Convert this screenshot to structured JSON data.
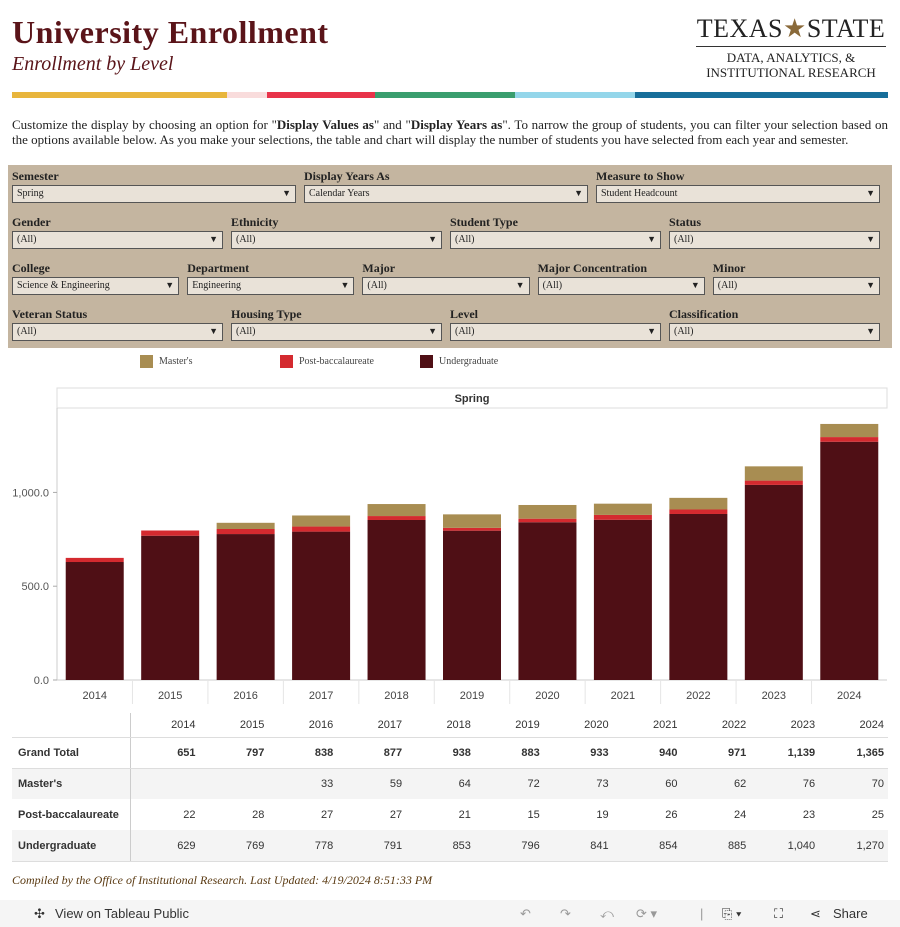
{
  "header": {
    "title": "University  Enrollment",
    "subtitle": "Enrollment  by  Level"
  },
  "logo": {
    "line1a": "TEXAS",
    "line1b": "STATE",
    "line2": "DATA, ANALYTICS, &",
    "line3": "INSTITUTIONAL RESEARCH"
  },
  "stripe_colors": [
    "#e8b53c",
    "#f9dcdc",
    "#e8334a",
    "#3a9e6e",
    "#94d6ea",
    "#176e9a"
  ],
  "intro": {
    "t1": "Customize the display by choosing an option for \"",
    "b1": "Display Values as",
    "t2": "\" and \"",
    "b2": "Display Years as",
    "t3": "\". To narrow the group of students, you can filter your selection based on the options available below. As you make your selections, the table and chart will display the number of students you have selected from each year and semester."
  },
  "filters": [
    {
      "label": "Semester",
      "value": "Spring"
    },
    {
      "label": "Display  Years  As",
      "value": "Calendar Years"
    },
    {
      "label": "Measure to Show",
      "value": "Student Headcount"
    },
    {
      "label": "Gender",
      "value": "(All)"
    },
    {
      "label": "Ethnicity",
      "value": "(All)"
    },
    {
      "label": "Student Type",
      "value": "(All)"
    },
    {
      "label": "Status",
      "value": "(All)"
    },
    {
      "label": "College",
      "value": "Science & Engineering"
    },
    {
      "label": "Department",
      "value": "Engineering"
    },
    {
      "label": "Major",
      "value": "(All)"
    },
    {
      "label": "Major Concentration",
      "value": "(All)"
    },
    {
      "label": "Minor",
      "value": "(All)"
    },
    {
      "label": "Veteran Status",
      "value": "(All)"
    },
    {
      "label": "Housing Type",
      "value": "(All)"
    },
    {
      "label": "Level",
      "value": "(All)"
    },
    {
      "label": "Classification",
      "value": "(All)"
    }
  ],
  "chart_data": {
    "type": "bar",
    "stacked": true,
    "title": "Spring",
    "categories": [
      "2014",
      "2015",
      "2016",
      "2017",
      "2018",
      "2019",
      "2020",
      "2021",
      "2022",
      "2023",
      "2024"
    ],
    "series": [
      {
        "name": "Undergraduate",
        "color": "#4f0f15",
        "values": [
          629,
          769,
          778,
          791,
          853,
          796,
          841,
          854,
          885,
          1040,
          1270
        ]
      },
      {
        "name": "Post-baccalaureate",
        "color": "#d42a2f",
        "values": [
          22,
          28,
          27,
          27,
          21,
          15,
          19,
          26,
          24,
          23,
          25
        ]
      },
      {
        "name": "Master's",
        "color": "#a88d52",
        "values": [
          0,
          0,
          33,
          59,
          64,
          72,
          73,
          60,
          62,
          76,
          70
        ]
      }
    ],
    "yticks": [
      "0.0",
      "500.0",
      "1,000.0"
    ],
    "ylim": [
      0,
      1450
    ],
    "legend": "top"
  },
  "table": {
    "years": [
      "2014",
      "2015",
      "2016",
      "2017",
      "2018",
      "2019",
      "2020",
      "2021",
      "2022",
      "2023",
      "2024"
    ],
    "rows": [
      {
        "label": "Grand Total",
        "values": [
          "651",
          "797",
          "838",
          "877",
          "938",
          "883",
          "933",
          "940",
          "971",
          "1,139",
          "1,365"
        ]
      },
      {
        "label": "Master's",
        "values": [
          "",
          "",
          "33",
          "59",
          "64",
          "72",
          "73",
          "60",
          "62",
          "76",
          "70"
        ]
      },
      {
        "label": "Post-baccalaureate",
        "values": [
          "22",
          "28",
          "27",
          "27",
          "21",
          "15",
          "19",
          "26",
          "24",
          "23",
          "25"
        ]
      },
      {
        "label": "Undergraduate",
        "values": [
          "629",
          "769",
          "778",
          "791",
          "853",
          "796",
          "841",
          "854",
          "885",
          "1,040",
          "1,270"
        ]
      }
    ]
  },
  "footer": "Compiled by the Office of Institutional Research. Last Updated: 4/19/2024 8:51:33 PM",
  "toolbar": {
    "view": "View on Tableau Public",
    "share": "Share"
  }
}
